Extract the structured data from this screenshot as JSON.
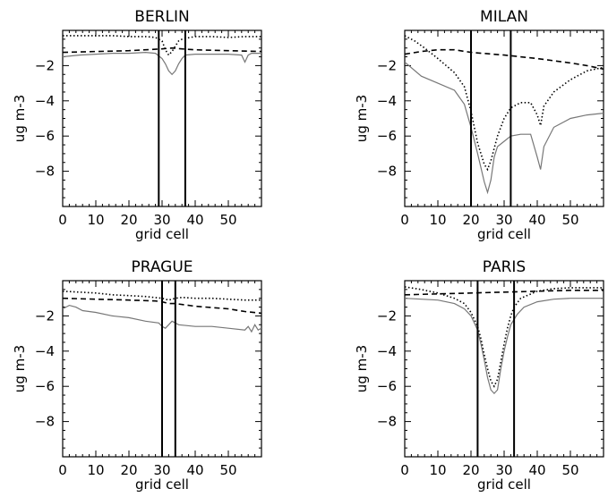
{
  "chart_data": [
    {
      "type": "line",
      "title": "BERLIN",
      "xlabel": "grid cell",
      "ylabel": "ug m-3",
      "xlim": [
        0,
        60
      ],
      "ylim": [
        -10,
        0
      ],
      "xticks": [
        0,
        10,
        20,
        30,
        40,
        50
      ],
      "yticks": [
        -2,
        -4,
        -6,
        -8
      ],
      "vlines": [
        29,
        37
      ],
      "series": [
        {
          "style": "solid",
          "color": "#777777",
          "x": [
            0,
            5,
            10,
            15,
            20,
            25,
            28,
            30,
            31,
            32,
            33,
            34,
            35,
            36,
            37,
            40,
            45,
            50,
            54,
            55,
            56,
            57,
            60
          ],
          "y": [
            -1.5,
            -1.4,
            -1.35,
            -1.3,
            -1.3,
            -1.25,
            -1.3,
            -1.6,
            -1.9,
            -2.3,
            -2.5,
            -2.3,
            -1.9,
            -1.6,
            -1.4,
            -1.35,
            -1.35,
            -1.35,
            -1.4,
            -1.8,
            -1.4,
            -1.3,
            -1.3
          ]
        },
        {
          "style": "dotted",
          "color": "#000000",
          "x": [
            0,
            5,
            10,
            15,
            20,
            25,
            28,
            30,
            31,
            32,
            33,
            34,
            35,
            36,
            37,
            40,
            45,
            50,
            55,
            60
          ],
          "y": [
            -0.3,
            -0.3,
            -0.3,
            -0.3,
            -0.35,
            -0.35,
            -0.4,
            -0.6,
            -1.1,
            -1.4,
            -1.2,
            -0.9,
            -0.6,
            -0.5,
            -0.45,
            -0.35,
            -0.35,
            -0.4,
            -0.35,
            -0.35
          ]
        },
        {
          "style": "dashed",
          "color": "#000000",
          "x": [
            0,
            10,
            20,
            30,
            33,
            36,
            40,
            50,
            60
          ],
          "y": [
            -1.25,
            -1.2,
            -1.15,
            -1.05,
            -1.0,
            -1.05,
            -1.1,
            -1.15,
            -1.2
          ]
        }
      ]
    },
    {
      "type": "line",
      "title": "MILAN",
      "xlabel": "grid cell",
      "ylabel": "ug m-3",
      "xlim": [
        0,
        60
      ],
      "ylim": [
        -10,
        0
      ],
      "xticks": [
        0,
        10,
        20,
        30,
        40,
        50
      ],
      "yticks": [
        -2,
        -4,
        -6,
        -8
      ],
      "vlines": [
        20,
        32
      ],
      "series": [
        {
          "style": "solid",
          "color": "#777777",
          "x": [
            0,
            5,
            10,
            15,
            18,
            20,
            22,
            24,
            25,
            26,
            27,
            28,
            30,
            32,
            35,
            38,
            40,
            41,
            42,
            45,
            50,
            55,
            60
          ],
          "y": [
            -1.8,
            -2.6,
            -3.0,
            -3.4,
            -4.2,
            -5.5,
            -7.0,
            -8.6,
            -9.2,
            -8.5,
            -7.2,
            -6.6,
            -6.3,
            -6.0,
            -5.9,
            -5.9,
            -7.2,
            -7.9,
            -6.6,
            -5.5,
            -5.0,
            -4.8,
            -4.7
          ]
        },
        {
          "style": "dotted",
          "color": "#000000",
          "x": [
            0,
            3,
            6,
            10,
            15,
            18,
            20,
            22,
            24,
            25,
            26,
            28,
            30,
            32,
            35,
            38,
            40,
            41,
            42,
            45,
            50,
            55,
            60
          ],
          "y": [
            -0.3,
            -0.6,
            -1.0,
            -1.6,
            -2.4,
            -3.2,
            -4.6,
            -6.4,
            -7.6,
            -7.9,
            -7.4,
            -6.0,
            -5.0,
            -4.4,
            -4.1,
            -4.1,
            -4.8,
            -5.4,
            -4.3,
            -3.5,
            -2.8,
            -2.3,
            -2.1
          ]
        },
        {
          "style": "dashed",
          "color": "#000000",
          "x": [
            0,
            5,
            10,
            15,
            20,
            30,
            40,
            50,
            55,
            60
          ],
          "y": [
            -1.35,
            -1.2,
            -1.1,
            -1.1,
            -1.25,
            -1.4,
            -1.6,
            -1.85,
            -2.0,
            -2.2
          ]
        }
      ]
    },
    {
      "type": "line",
      "title": "PRAGUE",
      "xlabel": "grid cell",
      "ylabel": "ug m-3",
      "xlim": [
        0,
        60
      ],
      "ylim": [
        -10,
        0
      ],
      "xticks": [
        0,
        10,
        20,
        30,
        40,
        50
      ],
      "yticks": [
        -2,
        -4,
        -6,
        -8
      ],
      "vlines": [
        30,
        34
      ],
      "series": [
        {
          "style": "solid",
          "color": "#777777",
          "x": [
            0,
            2,
            4,
            6,
            10,
            15,
            20,
            25,
            29,
            30,
            31,
            32,
            33,
            35,
            40,
            45,
            50,
            55,
            56,
            57,
            58,
            59,
            60
          ],
          "y": [
            -1.6,
            -1.4,
            -1.5,
            -1.7,
            -1.8,
            -2.0,
            -2.1,
            -2.3,
            -2.4,
            -2.6,
            -2.7,
            -2.5,
            -2.3,
            -2.5,
            -2.6,
            -2.6,
            -2.7,
            -2.8,
            -2.6,
            -2.9,
            -2.5,
            -2.8,
            -2.7
          ]
        },
        {
          "style": "dotted",
          "color": "#000000",
          "x": [
            0,
            5,
            10,
            15,
            20,
            25,
            30,
            32,
            34,
            36,
            40,
            45,
            50,
            55,
            60
          ],
          "y": [
            -0.6,
            -0.65,
            -0.7,
            -0.8,
            -0.85,
            -0.9,
            -1.0,
            -1.1,
            -1.0,
            -0.95,
            -1.0,
            -1.0,
            -1.05,
            -1.1,
            -1.1
          ]
        },
        {
          "style": "dashed",
          "color": "#000000",
          "x": [
            0,
            10,
            20,
            28,
            30,
            32,
            34,
            40,
            50,
            55,
            60
          ],
          "y": [
            -1.0,
            -1.05,
            -1.1,
            -1.15,
            -1.2,
            -1.3,
            -1.3,
            -1.45,
            -1.6,
            -1.75,
            -1.85
          ]
        }
      ]
    },
    {
      "type": "line",
      "title": "PARIS",
      "xlabel": "grid cell",
      "ylabel": "ug m-3",
      "xlim": [
        0,
        60
      ],
      "ylim": [
        -10,
        0
      ],
      "xticks": [
        0,
        10,
        20,
        30,
        40,
        50
      ],
      "yticks": [
        -2,
        -4,
        -6,
        -8
      ],
      "vlines": [
        22,
        33
      ],
      "series": [
        {
          "style": "solid",
          "color": "#777777",
          "x": [
            0,
            5,
            10,
            15,
            18,
            20,
            22,
            23,
            24,
            25,
            26,
            27,
            28,
            29,
            30,
            31,
            32,
            34,
            36,
            40,
            45,
            50,
            55,
            60
          ],
          "y": [
            -1.0,
            -1.05,
            -1.1,
            -1.3,
            -1.6,
            -2.0,
            -2.8,
            -3.6,
            -4.5,
            -5.5,
            -6.2,
            -6.4,
            -6.2,
            -5.0,
            -4.0,
            -3.2,
            -2.5,
            -1.9,
            -1.5,
            -1.2,
            -1.05,
            -1.0,
            -1.0,
            -1.0
          ]
        },
        {
          "style": "dotted",
          "color": "#000000",
          "x": [
            0,
            5,
            10,
            15,
            18,
            20,
            22,
            23,
            24,
            25,
            26,
            27,
            28,
            29,
            30,
            31,
            32,
            33,
            35,
            40,
            45,
            50,
            55,
            60
          ],
          "y": [
            -0.35,
            -0.5,
            -0.7,
            -1.0,
            -1.3,
            -1.8,
            -2.6,
            -3.3,
            -4.2,
            -5.0,
            -5.7,
            -6.0,
            -5.6,
            -4.6,
            -3.6,
            -2.7,
            -2.0,
            -1.5,
            -1.0,
            -0.6,
            -0.45,
            -0.4,
            -0.4,
            -0.4
          ]
        },
        {
          "style": "dashed",
          "color": "#000000",
          "x": [
            0,
            10,
            20,
            30,
            40,
            50,
            60
          ],
          "y": [
            -0.8,
            -0.75,
            -0.7,
            -0.65,
            -0.6,
            -0.55,
            -0.55
          ]
        }
      ]
    }
  ]
}
